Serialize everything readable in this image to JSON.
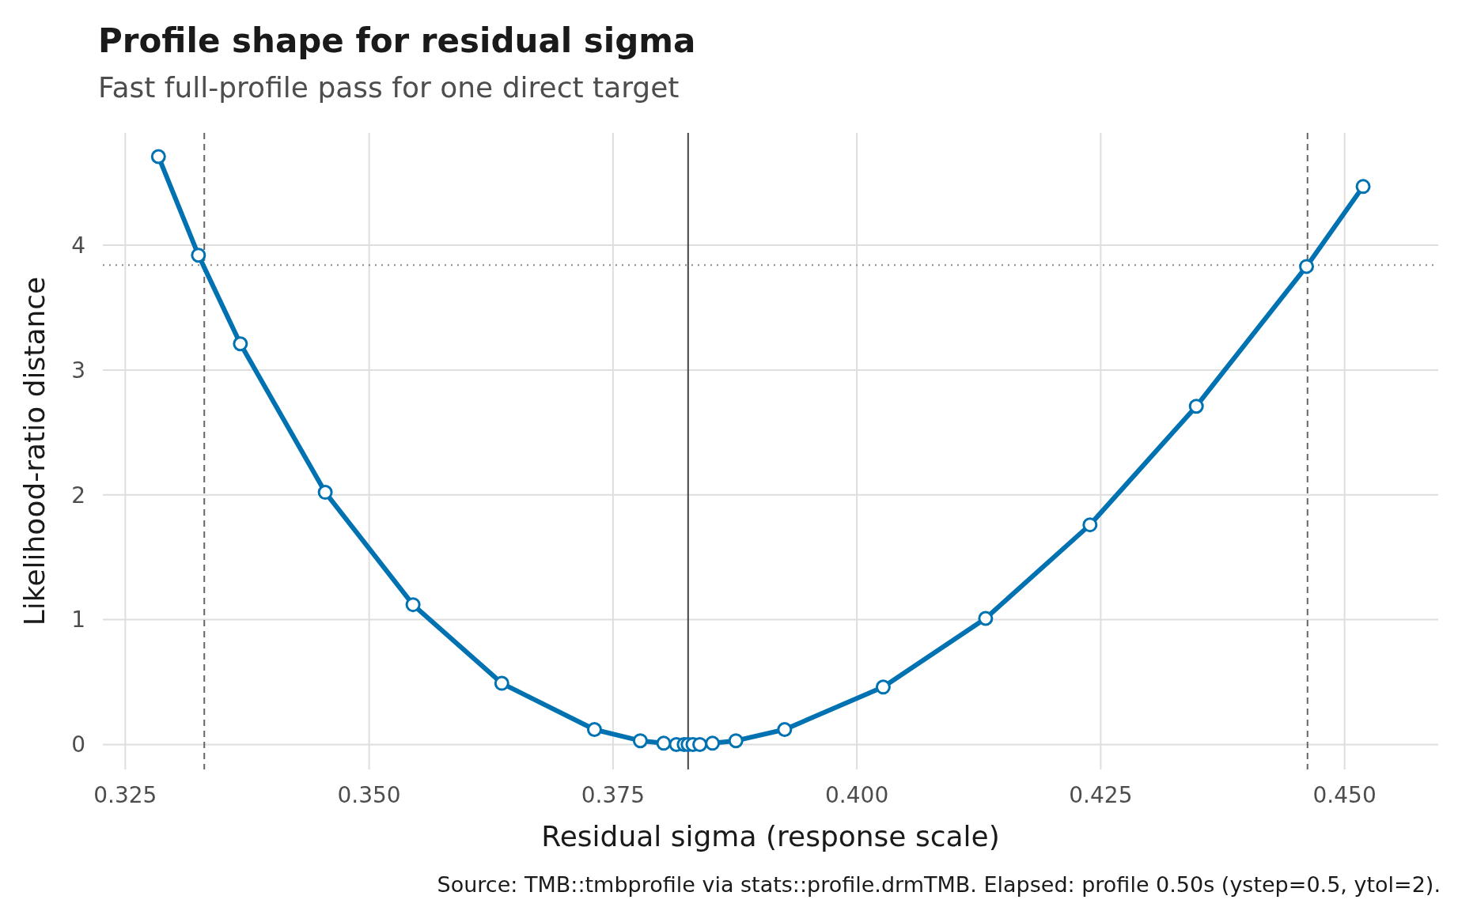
{
  "chart_data": {
    "type": "line",
    "title": "Profile shape for residual sigma",
    "subtitle": "Fast full-profile pass for one direct target",
    "xlabel": "Residual sigma (response scale)",
    "ylabel": "Likelihood-ratio distance",
    "annotations": [
      "Source: TMB::tmbprofile via stats::profile.drmTMB. Elapsed: profile 0.50s (ystep=0.5, ytol=2)."
    ],
    "x": [
      0.3284,
      0.3325,
      0.3368,
      0.3455,
      0.3545,
      0.3636,
      0.3731,
      0.3778,
      0.3802,
      0.3815,
      0.3823,
      0.3827,
      0.3832,
      0.3839,
      0.3852,
      0.3876,
      0.3926,
      0.4027,
      0.4132,
      0.4239,
      0.4348,
      0.4461,
      0.4519
    ],
    "series": [
      {
        "color": "#0072b2",
        "values": [
          4.71,
          3.92,
          3.21,
          2.02,
          1.12,
          0.49,
          0.12,
          0.03,
          0.01,
          0,
          0,
          0,
          0,
          0,
          0.01,
          0.03,
          0.12,
          0.46,
          1.01,
          1.76,
          2.71,
          3.83,
          4.47
        ]
      }
    ],
    "xlim": [
      0.3227,
      0.4596
    ],
    "ylim": [
      -0.2,
      4.9
    ],
    "xticks": [
      {
        "value": 0.325,
        "label": "0.325"
      },
      {
        "value": 0.35,
        "label": "0.350"
      },
      {
        "value": 0.375,
        "label": "0.375"
      },
      {
        "value": 0.4,
        "label": "0.400"
      },
      {
        "value": 0.425,
        "label": "0.425"
      },
      {
        "value": 0.45,
        "label": "0.450"
      }
    ],
    "yticks": [
      0,
      1,
      2,
      3,
      4
    ],
    "grid": true,
    "marker": "circle",
    "line_style": "solid",
    "ref_lines": [
      {
        "axis": "x",
        "value": 0.3331,
        "color": "#666666",
        "line_style": "dashed"
      },
      {
        "axis": "x",
        "value": 0.4462,
        "color": "#666666",
        "line_style": "dashed"
      },
      {
        "axis": "x",
        "value": 0.3827,
        "color": "#444444",
        "line_style": "solid"
      },
      {
        "axis": "y",
        "value": 3.84,
        "color": "#888888",
        "line_style": "dotted"
      }
    ]
  }
}
